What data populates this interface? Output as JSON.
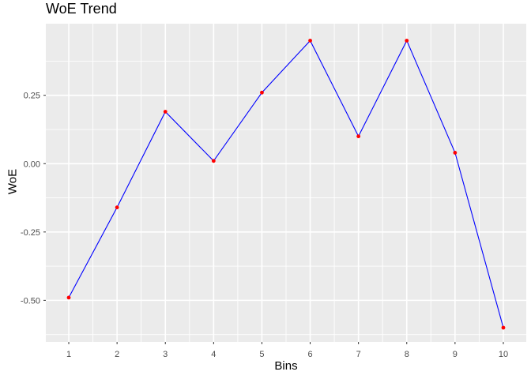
{
  "chart_data": {
    "type": "line",
    "title": "WoE Trend",
    "xlabel": "Bins",
    "ylabel": "WoE",
    "x": [
      1,
      2,
      3,
      4,
      5,
      6,
      7,
      8,
      9,
      10
    ],
    "values": [
      -0.49,
      -0.16,
      0.19,
      0.01,
      0.26,
      0.45,
      0.1,
      0.45,
      0.04,
      -0.6
    ],
    "x_ticks": [
      1,
      2,
      3,
      4,
      5,
      6,
      7,
      8,
      9,
      10
    ],
    "y_ticks": [
      0.25,
      0,
      -0.25,
      -0.5
    ],
    "y_tick_labels": [
      "0.25",
      "0.00",
      "-0.25",
      "-0.50"
    ],
    "x_minor": [
      1.5,
      2.5,
      3.5,
      4.5,
      5.5,
      6.5,
      7.5,
      8.5,
      9.5
    ],
    "y_minor": [
      0.375,
      0.125,
      -0.125,
      -0.375,
      -0.625
    ],
    "xlim": [
      0.525,
      10.475
    ],
    "ylim": [
      -0.652,
      0.512
    ],
    "grid": "major-and-minor",
    "legend": "none",
    "colors": {
      "line": "#0000FF",
      "point": "#FF0000",
      "panel_background": "#EBEBEB",
      "gridline": "#FFFFFF",
      "tick_label": "#4D4D4D",
      "tick_mark": "#333333",
      "axis_title": "#000000",
      "title": "#000000"
    }
  }
}
